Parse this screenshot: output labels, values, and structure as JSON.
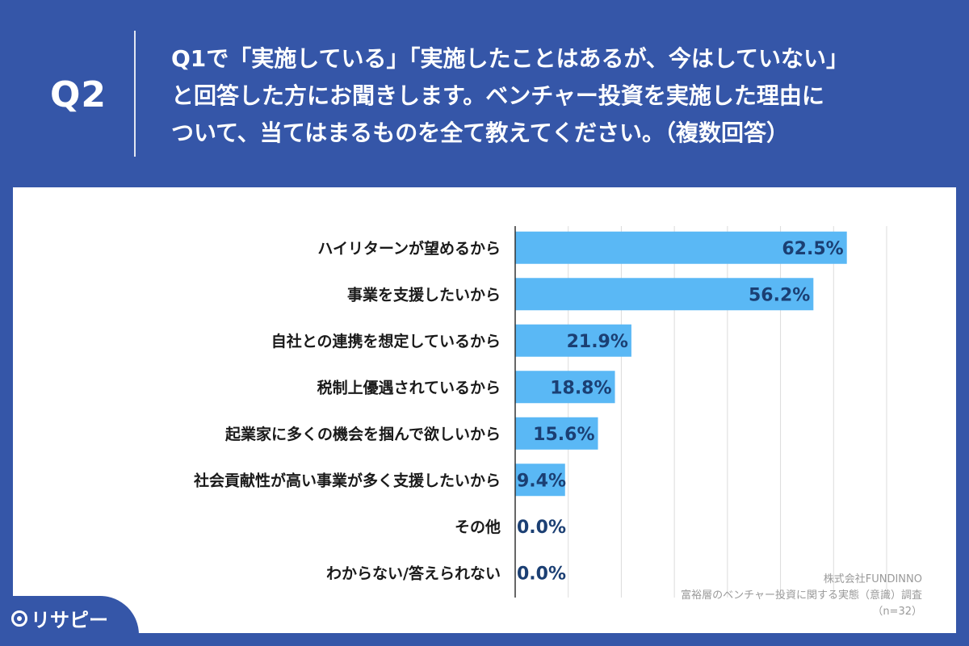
{
  "header": {
    "question_number": "Q2",
    "question_lines": [
      "Q1で「実施している」「実施したことはあるが、今はしていない」",
      "と回答した方にお聞きします。ベンチャー投資を実施した理由に",
      "ついて、当てはまるものを全て教えてください。（複数回答）"
    ]
  },
  "colors": {
    "background": "#3556a8",
    "bar": "#5ab8f5",
    "value_text": "#1b3f73"
  },
  "chart_data": {
    "type": "bar",
    "orientation": "horizontal",
    "categories": [
      "ハイリターンが望めるから",
      "事業を支援したいから",
      "自社との連携を想定しているから",
      "税制上優遇されているから",
      "起業家に多くの機会を掴んで欲しいから",
      "社会貢献性が高い事業が多く支援したいから",
      "その他",
      "わからない/答えられない"
    ],
    "values": [
      62.5,
      56.2,
      21.9,
      18.8,
      15.6,
      9.4,
      0.0,
      0.0
    ],
    "value_labels": [
      "62.5%",
      "56.2%",
      "21.9%",
      "18.8%",
      "15.6%",
      "9.4%",
      "0.0%",
      "0.0%"
    ],
    "xlim": [
      0,
      70
    ],
    "grid": true
  },
  "credit": {
    "company": "株式会社FUNDINNO",
    "survey": "富裕層のベンチャー投資に関する実態（意識）調査",
    "sample": "（n=32）"
  },
  "logo": {
    "text": "リサピー"
  }
}
